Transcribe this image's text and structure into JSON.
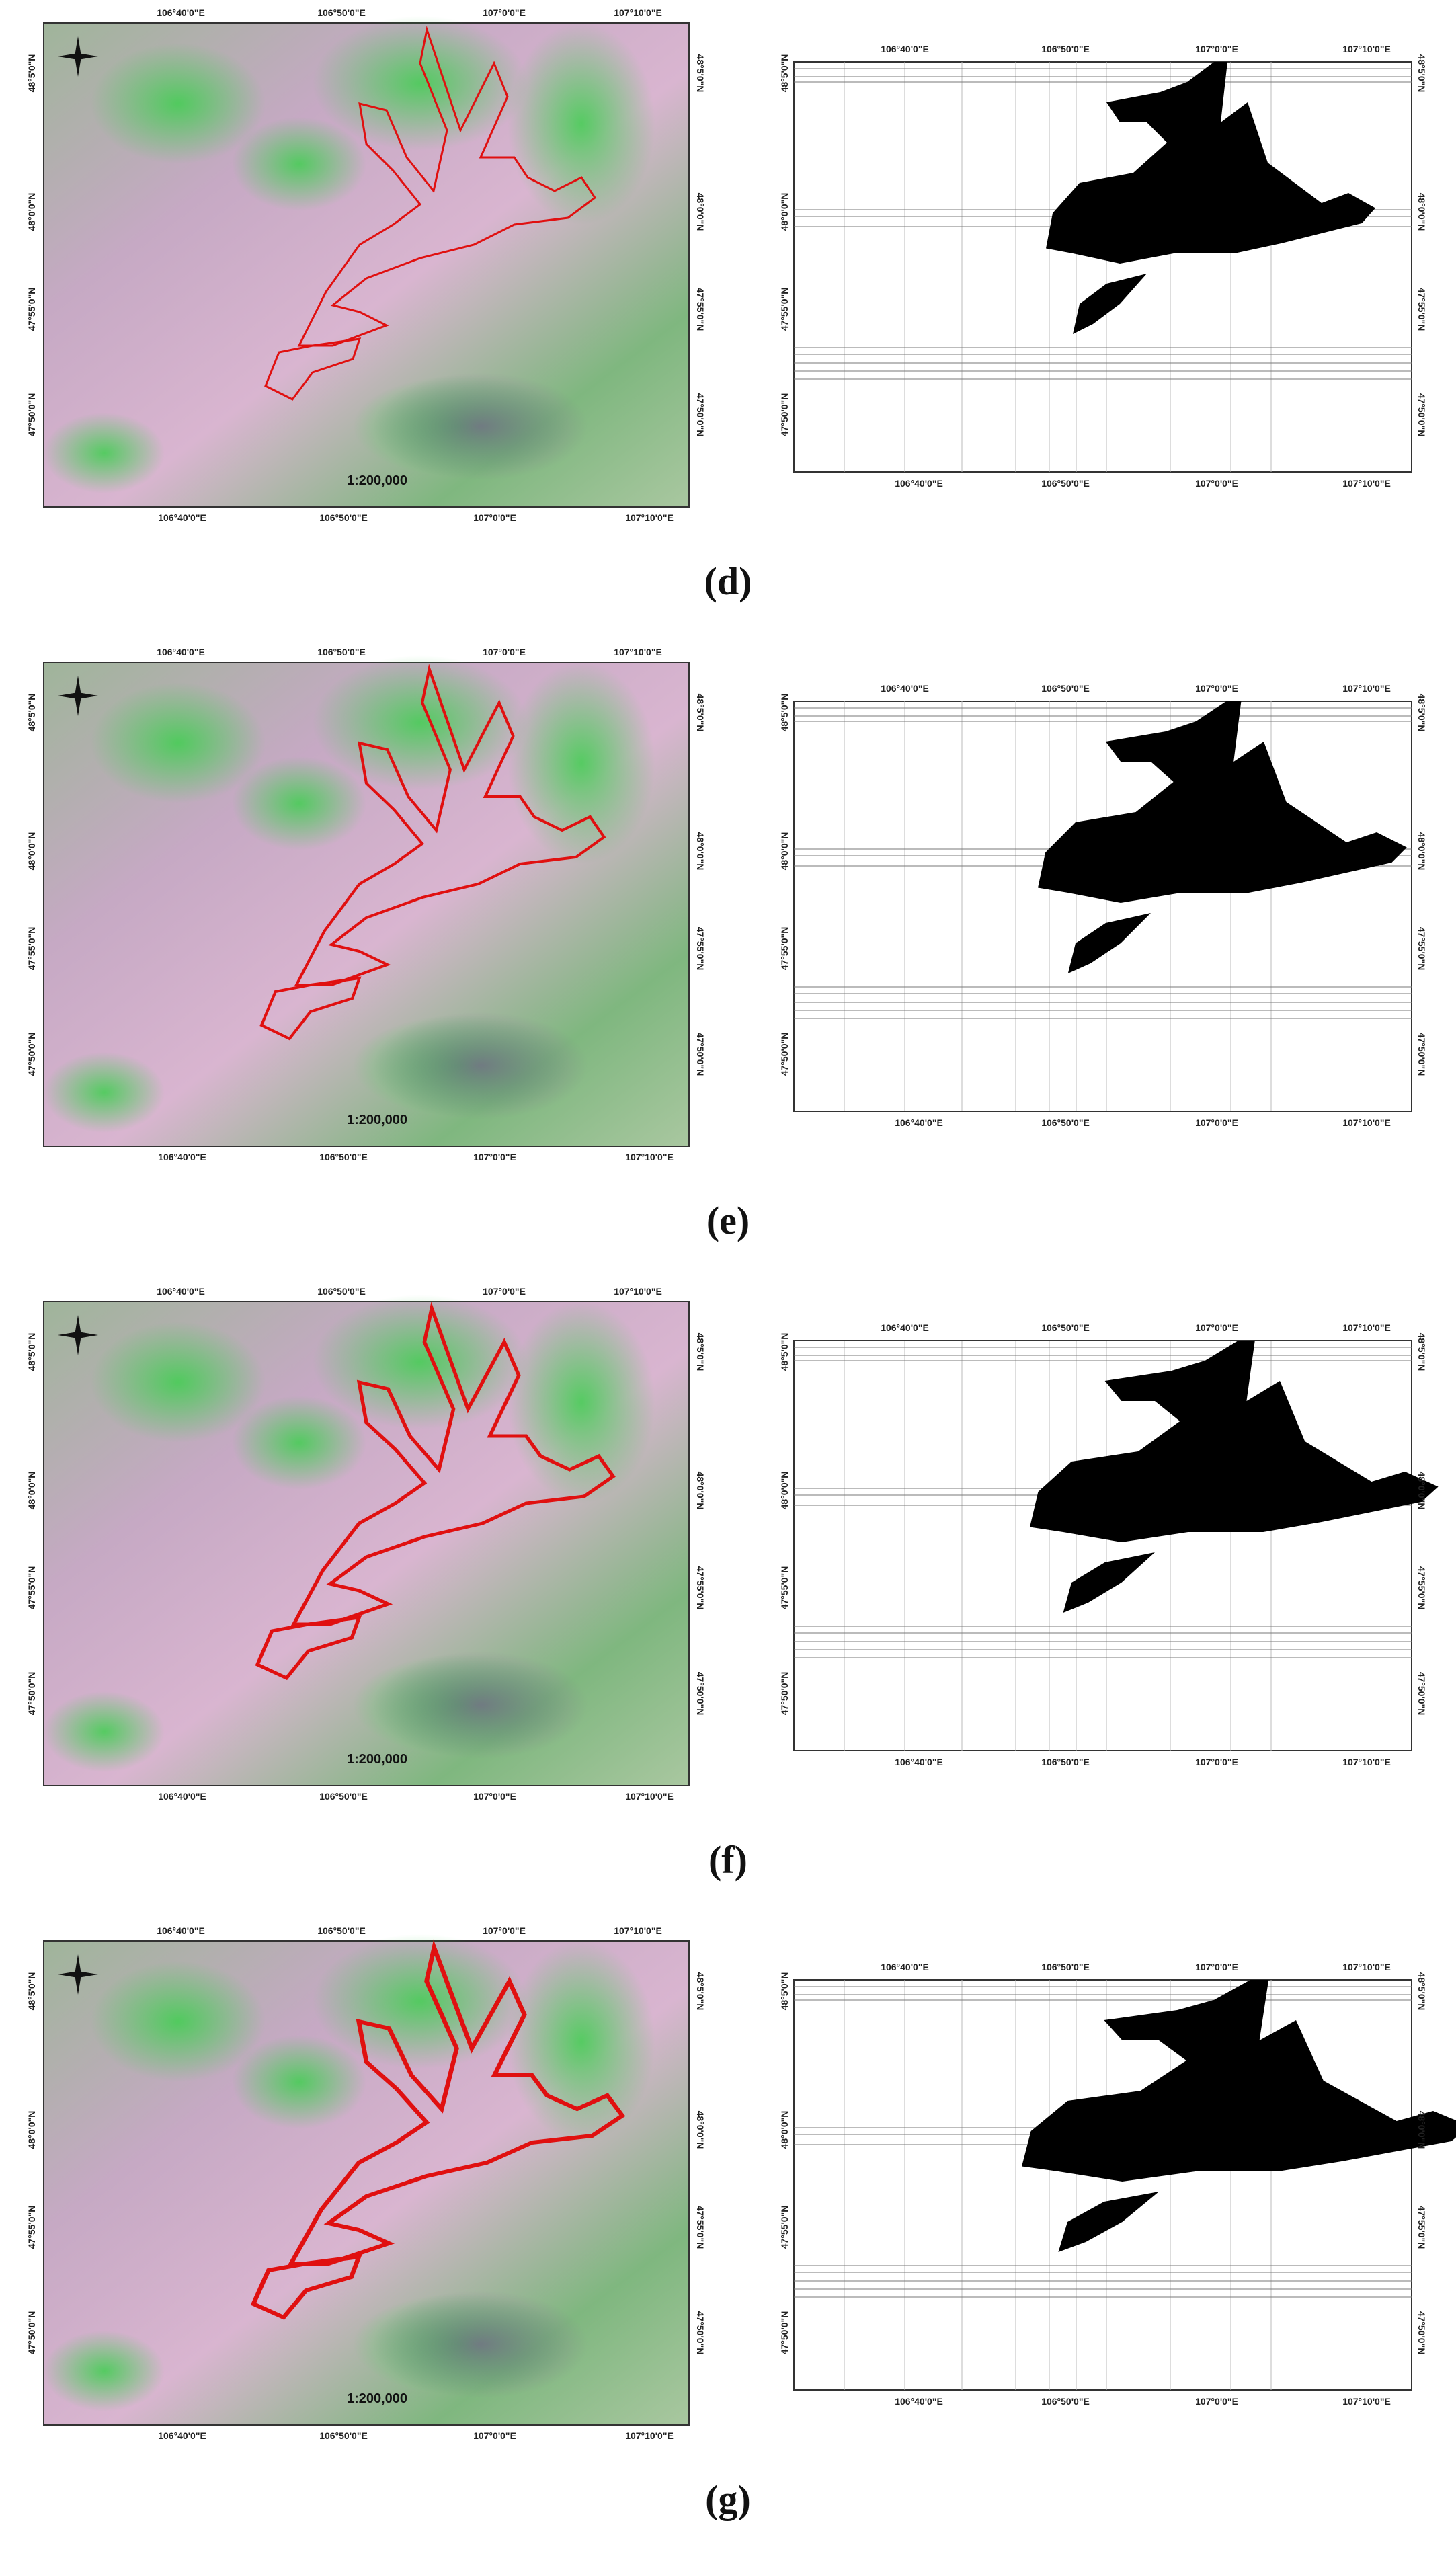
{
  "map_labels": {
    "lon": [
      "106°40'0\"E",
      "106°50'0\"E",
      "107°0'0\"E",
      "107°10'0\"E"
    ],
    "lat": [
      "48°5'0\"N",
      "48°0'0\"N",
      "47°55'0\"N",
      "47°50'0\"N"
    ],
    "scale": "1:200,000"
  },
  "panels": [
    {
      "caption": "(d)"
    },
    {
      "caption": "(e)"
    },
    {
      "caption": "(f)"
    },
    {
      "caption": "(g)"
    }
  ]
}
